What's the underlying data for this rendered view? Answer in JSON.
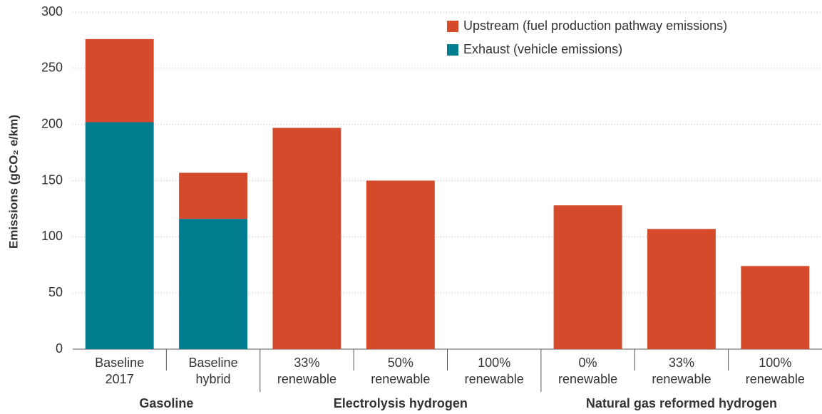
{
  "chart_data": {
    "type": "stacked_bar",
    "ylabel": "Emissions (gCO₂ e/km)",
    "groups": [
      {
        "name": "Gasoline",
        "categories": [
          [
            "Baseline",
            "2017"
          ],
          [
            "Baseline",
            "hybrid"
          ]
        ]
      },
      {
        "name": "Electrolysis hydrogen",
        "categories": [
          [
            "33%",
            "renewable"
          ],
          [
            "50%",
            "renewable"
          ],
          [
            "100%",
            "renewable"
          ]
        ]
      },
      {
        "name": "Natural gas reformed hydrogen",
        "categories": [
          [
            "0%",
            "renewable"
          ],
          [
            "33%",
            "renewable"
          ],
          [
            "100%",
            "renewable"
          ]
        ]
      }
    ],
    "series": [
      {
        "name": "Exhaust (vehicle emissions)",
        "color": "#007d8f",
        "values": [
          202,
          116,
          0,
          0,
          0,
          0,
          0,
          0
        ]
      },
      {
        "name": "Upstream (fuel production pathway emissions)",
        "color": "#d44a2a",
        "values": [
          74,
          41,
          197,
          150,
          0,
          128,
          107,
          74
        ]
      }
    ],
    "ylim": [
      0,
      300
    ],
    "yticks": [
      0,
      50,
      100,
      150,
      200,
      250,
      300
    ],
    "grid": true,
    "legend": "top-right"
  }
}
